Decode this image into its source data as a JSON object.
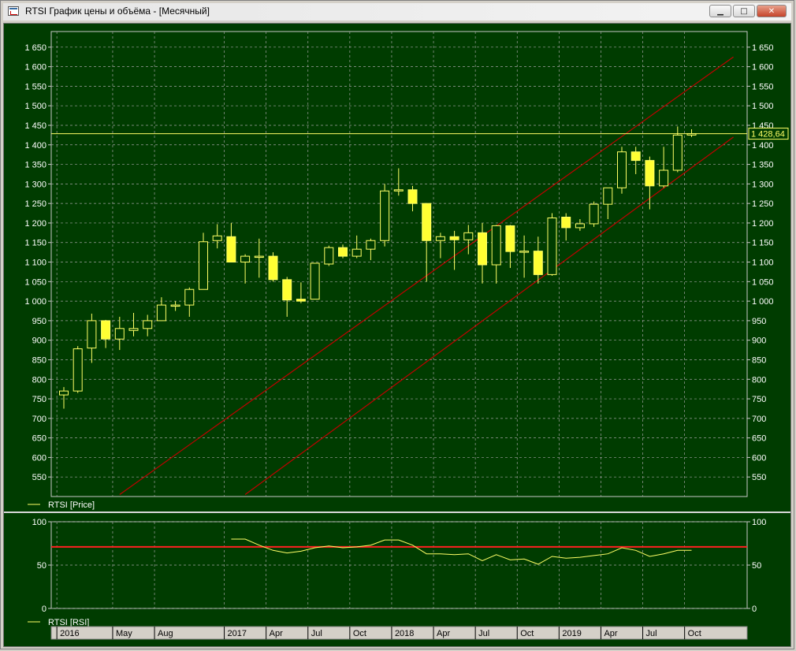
{
  "window": {
    "title": "RTSI График цены и объёма - [Месячный]",
    "buttons": {
      "minimize": "▁",
      "maximize": "□",
      "close": "✕"
    }
  },
  "colors": {
    "background": "#003c00",
    "grid": "#a0a0a0",
    "up_candle_fill": "#003c00",
    "down_candle_fill": "#ffff33",
    "candle_outline": "#ffff66",
    "channel": "#c00000",
    "rsi_line": "#ffff66",
    "rsi_level": "#ff2020",
    "axis_text": "#ffffff"
  },
  "chart_data": [
    {
      "type": "candlestick",
      "panel": "price",
      "legend": "RTSI [Price]",
      "ylim": [
        500,
        1690
      ],
      "yticks": [
        550,
        600,
        650,
        700,
        750,
        800,
        850,
        900,
        950,
        1000,
        1050,
        1100,
        1150,
        1200,
        1250,
        1300,
        1350,
        1400,
        1450,
        1500,
        1550,
        1600,
        1650
      ],
      "ytick_labels": [
        "550",
        "600",
        "650",
        "700",
        "750",
        "800",
        "850",
        "900",
        "950",
        "1 000",
        "1 050",
        "1 100",
        "1 150",
        "1 200",
        "1 250",
        "1 300",
        "1 350",
        "1 400",
        "1 450",
        "1 500",
        "1 550",
        "1 600",
        "1 650"
      ],
      "last_value_label": "1 428,64",
      "last_value": 1428.64,
      "candles": [
        {
          "date": "2016-01",
          "o": 760,
          "h": 780,
          "l": 725,
          "c": 770
        },
        {
          "date": "2016-02",
          "o": 770,
          "h": 885,
          "l": 765,
          "c": 878
        },
        {
          "date": "2016-03",
          "o": 880,
          "h": 968,
          "l": 842,
          "c": 950
        },
        {
          "date": "2016-04",
          "o": 950,
          "h": 952,
          "l": 880,
          "c": 903
        },
        {
          "date": "2016-05",
          "o": 903,
          "h": 960,
          "l": 875,
          "c": 930
        },
        {
          "date": "2016-06",
          "o": 925,
          "h": 970,
          "l": 910,
          "c": 930
        },
        {
          "date": "2016-07",
          "o": 930,
          "h": 965,
          "l": 910,
          "c": 950
        },
        {
          "date": "2016-08",
          "o": 950,
          "h": 1010,
          "l": 950,
          "c": 990
        },
        {
          "date": "2016-09",
          "o": 988,
          "h": 1000,
          "l": 975,
          "c": 990
        },
        {
          "date": "2016-10",
          "o": 990,
          "h": 1035,
          "l": 960,
          "c": 1030
        },
        {
          "date": "2016-11",
          "o": 1030,
          "h": 1175,
          "l": 1030,
          "c": 1152
        },
        {
          "date": "2016-12",
          "o": 1155,
          "h": 1197,
          "l": 1135,
          "c": 1167
        },
        {
          "date": "2017-01",
          "o": 1165,
          "h": 1200,
          "l": 1100,
          "c": 1100
        },
        {
          "date": "2017-02",
          "o": 1100,
          "h": 1120,
          "l": 1045,
          "c": 1115
        },
        {
          "date": "2017-03",
          "o": 1115,
          "h": 1160,
          "l": 1060,
          "c": 1115
        },
        {
          "date": "2017-04",
          "o": 1115,
          "h": 1125,
          "l": 1050,
          "c": 1055
        },
        {
          "date": "2017-05",
          "o": 1055,
          "h": 1062,
          "l": 960,
          "c": 1003
        },
        {
          "date": "2017-06",
          "o": 1005,
          "h": 1048,
          "l": 995,
          "c": 1000
        },
        {
          "date": "2017-07",
          "o": 1005,
          "h": 1097,
          "l": 1005,
          "c": 1097
        },
        {
          "date": "2017-08",
          "o": 1095,
          "h": 1142,
          "l": 1090,
          "c": 1137
        },
        {
          "date": "2017-09",
          "o": 1137,
          "h": 1145,
          "l": 1110,
          "c": 1115
        },
        {
          "date": "2017-10",
          "o": 1115,
          "h": 1168,
          "l": 1110,
          "c": 1133
        },
        {
          "date": "2017-11",
          "o": 1133,
          "h": 1160,
          "l": 1105,
          "c": 1155
        },
        {
          "date": "2017-12",
          "o": 1155,
          "h": 1300,
          "l": 1140,
          "c": 1282
        },
        {
          "date": "2018-01",
          "o": 1282,
          "h": 1340,
          "l": 1270,
          "c": 1285
        },
        {
          "date": "2018-02",
          "o": 1285,
          "h": 1295,
          "l": 1230,
          "c": 1250
        },
        {
          "date": "2018-03",
          "o": 1250,
          "h": 1250,
          "l": 1050,
          "c": 1155
        },
        {
          "date": "2018-04",
          "o": 1155,
          "h": 1175,
          "l": 1110,
          "c": 1165
        },
        {
          "date": "2018-05",
          "o": 1165,
          "h": 1180,
          "l": 1080,
          "c": 1157
        },
        {
          "date": "2018-06",
          "o": 1157,
          "h": 1195,
          "l": 1120,
          "c": 1175
        },
        {
          "date": "2018-07",
          "o": 1175,
          "h": 1200,
          "l": 1045,
          "c": 1093
        },
        {
          "date": "2018-08",
          "o": 1093,
          "h": 1195,
          "l": 1045,
          "c": 1193
        },
        {
          "date": "2018-09",
          "o": 1193,
          "h": 1195,
          "l": 1085,
          "c": 1127
        },
        {
          "date": "2018-10",
          "o": 1127,
          "h": 1168,
          "l": 1060,
          "c": 1128
        },
        {
          "date": "2018-11",
          "o": 1128,
          "h": 1165,
          "l": 1045,
          "c": 1068
        },
        {
          "date": "2018-12",
          "o": 1068,
          "h": 1225,
          "l": 1065,
          "c": 1213
        },
        {
          "date": "2019-01",
          "o": 1215,
          "h": 1225,
          "l": 1155,
          "c": 1188
        },
        {
          "date": "2019-02",
          "o": 1188,
          "h": 1210,
          "l": 1180,
          "c": 1198
        },
        {
          "date": "2019-03",
          "o": 1198,
          "h": 1255,
          "l": 1190,
          "c": 1248
        },
        {
          "date": "2019-04",
          "o": 1248,
          "h": 1290,
          "l": 1210,
          "c": 1290
        },
        {
          "date": "2019-05",
          "o": 1290,
          "h": 1395,
          "l": 1275,
          "c": 1382
        },
        {
          "date": "2019-06",
          "o": 1382,
          "h": 1395,
          "l": 1325,
          "c": 1360
        },
        {
          "date": "2019-07",
          "o": 1360,
          "h": 1370,
          "l": 1235,
          "c": 1295
        },
        {
          "date": "2019-08",
          "o": 1295,
          "h": 1395,
          "l": 1290,
          "c": 1335
        },
        {
          "date": "2019-09",
          "o": 1335,
          "h": 1447,
          "l": 1330,
          "c": 1425
        },
        {
          "date": "2019-10",
          "o": 1425,
          "h": 1440,
          "l": 1420,
          "c": 1428.64
        }
      ],
      "horizontal_line": 1428.64,
      "channel_lines": [
        {
          "from": {
            "date": "2016-05",
            "value": 505
          },
          "to": {
            "date": "2020-01",
            "value": 1625
          }
        },
        {
          "from": {
            "date": "2017-02",
            "value": 505
          },
          "to": {
            "date": "2020-01",
            "value": 1420
          }
        }
      ],
      "grid": true
    },
    {
      "type": "line",
      "panel": "rsi",
      "legend": "RTSI [RSI]",
      "ylim": [
        0,
        100
      ],
      "yticks": [
        0,
        50,
        100
      ],
      "ytick_labels": [
        "0",
        "50",
        "100"
      ],
      "level": 71,
      "series": [
        {
          "name": "RTSI [RSI]",
          "points": [
            {
              "date": "2017-01",
              "value": 80
            },
            {
              "date": "2017-02",
              "value": 80
            },
            {
              "date": "2017-03",
              "value": 73
            },
            {
              "date": "2017-04",
              "value": 67
            },
            {
              "date": "2017-05",
              "value": 64
            },
            {
              "date": "2017-06",
              "value": 66
            },
            {
              "date": "2017-07",
              "value": 70
            },
            {
              "date": "2017-08",
              "value": 72
            },
            {
              "date": "2017-09",
              "value": 70
            },
            {
              "date": "2017-10",
              "value": 71
            },
            {
              "date": "2017-11",
              "value": 73
            },
            {
              "date": "2017-12",
              "value": 79
            },
            {
              "date": "2018-01",
              "value": 79
            },
            {
              "date": "2018-02",
              "value": 73
            },
            {
              "date": "2018-03",
              "value": 63
            },
            {
              "date": "2018-04",
              "value": 63
            },
            {
              "date": "2018-05",
              "value": 62
            },
            {
              "date": "2018-06",
              "value": 63
            },
            {
              "date": "2018-07",
              "value": 55
            },
            {
              "date": "2018-08",
              "value": 62
            },
            {
              "date": "2018-09",
              "value": 56
            },
            {
              "date": "2018-10",
              "value": 57
            },
            {
              "date": "2018-11",
              "value": 51
            },
            {
              "date": "2018-12",
              "value": 60
            },
            {
              "date": "2019-01",
              "value": 58
            },
            {
              "date": "2019-02",
              "value": 59
            },
            {
              "date": "2019-03",
              "value": 61
            },
            {
              "date": "2019-04",
              "value": 63
            },
            {
              "date": "2019-05",
              "value": 70
            },
            {
              "date": "2019-06",
              "value": 67
            },
            {
              "date": "2019-07",
              "value": 60
            },
            {
              "date": "2019-08",
              "value": 63
            },
            {
              "date": "2019-09",
              "value": 67
            },
            {
              "date": "2019-10",
              "value": 67
            }
          ]
        }
      ],
      "grid": true
    }
  ],
  "x_axis": {
    "labels": [
      {
        "date": "2016-01",
        "text": "2016"
      },
      {
        "date": "2016-05",
        "text": "May"
      },
      {
        "date": "2016-08",
        "text": "Aug"
      },
      {
        "date": "2017-01",
        "text": "2017"
      },
      {
        "date": "2017-04",
        "text": "Apr"
      },
      {
        "date": "2017-07",
        "text": "Jul"
      },
      {
        "date": "2017-10",
        "text": "Oct"
      },
      {
        "date": "2018-01",
        "text": "2018"
      },
      {
        "date": "2018-04",
        "text": "Apr"
      },
      {
        "date": "2018-07",
        "text": "Jul"
      },
      {
        "date": "2018-10",
        "text": "Oct"
      },
      {
        "date": "2019-01",
        "text": "2019"
      },
      {
        "date": "2019-04",
        "text": "Apr"
      },
      {
        "date": "2019-07",
        "text": "Jul"
      },
      {
        "date": "2019-10",
        "text": "Oct"
      }
    ]
  }
}
